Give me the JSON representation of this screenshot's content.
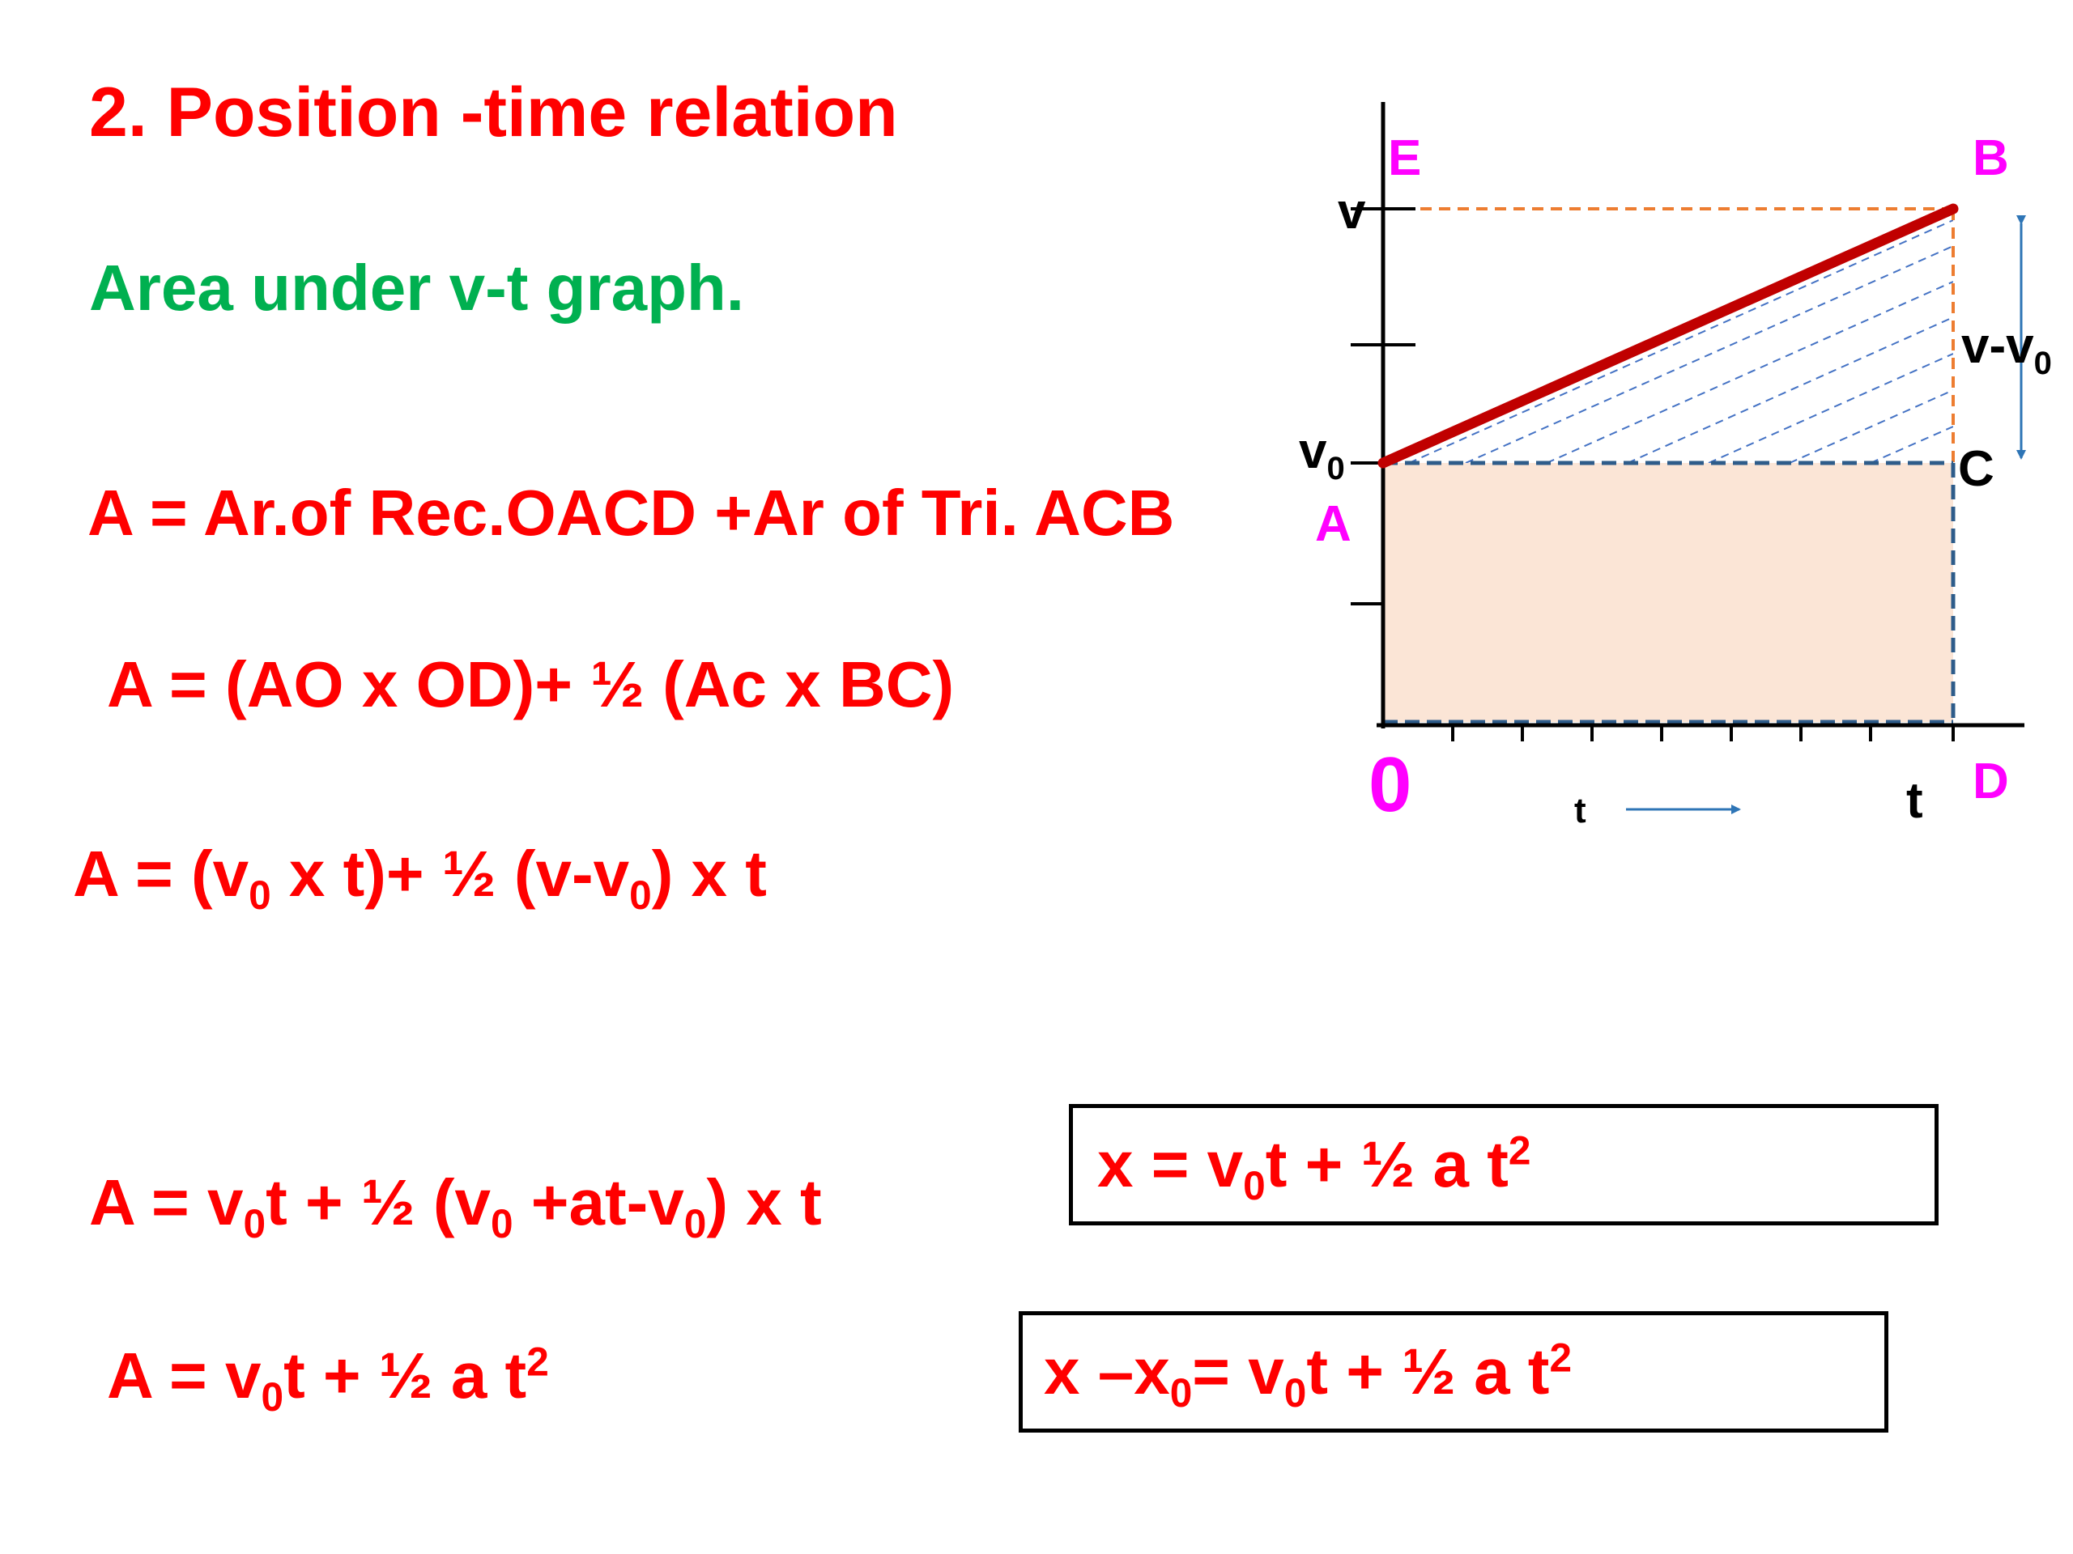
{
  "slide": {
    "title": "2. Position -time relation",
    "subtitle": "Area under v-t graph.",
    "eq1": "A = Ar.of Rec.OACD +Ar of Tri. ACB",
    "eq2": "A = (AO x OD)+ ½ (Ac x BC)",
    "eq3": {
      "a": "A = (v",
      "b": "0",
      "c": " x t)+ ½ (v-v",
      "d": "0",
      "e": ") x t"
    },
    "eq4": {
      "a": "A = v",
      "b": "0",
      "c": "t + ½ (v",
      "d": "0",
      "e": " +at-v",
      "f": "0",
      "g": ") x t"
    },
    "eq5": {
      "a": "A = v",
      "b": "0",
      "c": "t + ½ a t",
      "d": "2"
    },
    "result1": {
      "a": "x = v",
      "b": "0",
      "c": "t + ½ a t",
      "d": "2"
    },
    "result2": {
      "a": "x –x",
      "b": "0",
      "c": "= v",
      "d": "0",
      "e": "t + ½ a t",
      "f": "2"
    }
  },
  "graph": {
    "labels": {
      "E": "E",
      "B": "B",
      "A": "A",
      "C": "C",
      "D": "D",
      "O": "0",
      "v": "v",
      "v0_main": "v",
      "v0_sub": "0",
      "diff_main": "v-v",
      "diff_sub": "0",
      "t_axis": "t",
      "t_end": "t"
    },
    "colors": {
      "line": "#c00000",
      "label_pink": "#ff00ff",
      "dashed_orange": "#ed7d31",
      "dashed_blue": "#2e5c8a",
      "hatch": "#4472c4",
      "fill": "#fbe5d6",
      "arrow": "#2e75b6"
    }
  }
}
